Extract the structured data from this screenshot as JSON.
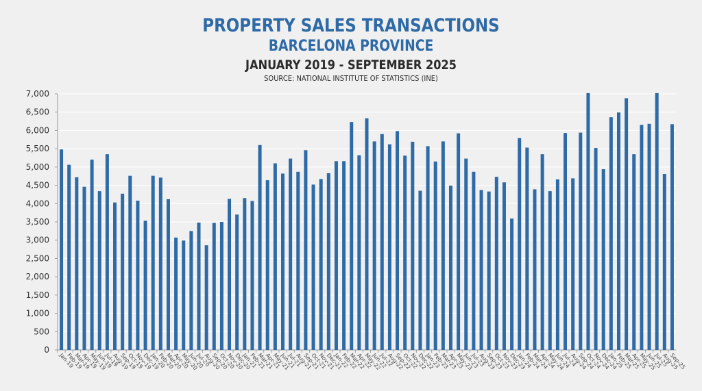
{
  "chart_data": {
    "type": "bar",
    "title": "PROPERTY SALES TRANSACTIONS",
    "subtitle": "BARCELONA PROVINCE",
    "period": "JANUARY 2019 - SEPTEMBER 2025",
    "source": "SOURCE: NATIONAL INSTITUTE OF STATISTICS (INE)",
    "xlabel": "",
    "ylabel": "",
    "ylim": [
      0,
      7000
    ],
    "yticks": [
      0,
      500,
      1000,
      1500,
      2000,
      2500,
      3000,
      3500,
      4000,
      4500,
      5000,
      5500,
      6000,
      6500,
      7000
    ],
    "ytick_labels": [
      "0",
      "500",
      "1,000",
      "1,500",
      "2,000",
      "2,500",
      "3,000",
      "3,500",
      "4,000",
      "4,500",
      "5,000",
      "5,500",
      "6,000",
      "6,500",
      "7,000"
    ],
    "grid": true,
    "legend": "none",
    "bar_color": "#2e6aa6",
    "categories": [
      "Jan-19",
      "Feb-19",
      "Mar-19",
      "Apr-19",
      "May-19",
      "Jun-19",
      "Jul-19",
      "Aug-19",
      "Sep-19",
      "Oct-19",
      "Nov-19",
      "Dec-19",
      "Jan-20",
      "Feb-20",
      "Mar-20",
      "Apr-20",
      "May-20",
      "Jun-20",
      "Jul-20",
      "Aug-20",
      "Sep-20",
      "Oct-20",
      "Nov-20",
      "Dec-20",
      "Jan-21",
      "Feb-21",
      "Mar-21",
      "Apr-21",
      "May-21",
      "Jun-21",
      "Jul-21",
      "Aug-21",
      "Sep-21",
      "Oct-21",
      "Nov-21",
      "Dec-21",
      "Jan-22",
      "Feb-22",
      "Mar-22",
      "Apr-22",
      "May-22",
      "Jun-22",
      "Jul-22",
      "Aug-22",
      "Sep-22",
      "Oct-22",
      "Nov-22",
      "Dec-22",
      "Jan-23",
      "Feb-23",
      "Mar-23",
      "Apr-23",
      "May-23",
      "Jun-23",
      "Jul-23",
      "Aug-23",
      "Sep-23",
      "Oct-23",
      "Nov-23",
      "Dec-23",
      "Jan-24",
      "Feb-24",
      "Mar-24",
      "Apr-24",
      "May-24",
      "Jun-24",
      "Jul-24",
      "Aug-24",
      "Sep-24",
      "Oct-24",
      "Nov-24",
      "Dec-24",
      "Jan-25",
      "Feb-25",
      "Mar-25",
      "Apr-25",
      "May-25",
      "Jun-25",
      "Jul-25",
      "Aug-25",
      "Sep-25"
    ],
    "values": [
      5480,
      5060,
      4720,
      4460,
      5200,
      4340,
      5350,
      4030,
      4270,
      4760,
      4080,
      3530,
      4760,
      4710,
      4120,
      3070,
      2990,
      3250,
      3480,
      2860,
      3470,
      3500,
      4130,
      3700,
      4150,
      4070,
      5600,
      4640,
      5100,
      4820,
      5230,
      4870,
      5460,
      4520,
      4670,
      4830,
      5160,
      5160,
      6230,
      5320,
      6330,
      5700,
      5900,
      5620,
      5980,
      5310,
      5690,
      4350,
      5570,
      5150,
      5700,
      4490,
      5920,
      5230,
      4870,
      4370,
      4330,
      4730,
      4580,
      3590,
      5790,
      5530,
      4390,
      5350,
      4340,
      4660,
      5930,
      4690,
      5940,
      7020,
      5520,
      4940,
      6360,
      6490,
      6880,
      5350,
      6150,
      6180,
      7020,
      4810,
      6170
    ]
  }
}
